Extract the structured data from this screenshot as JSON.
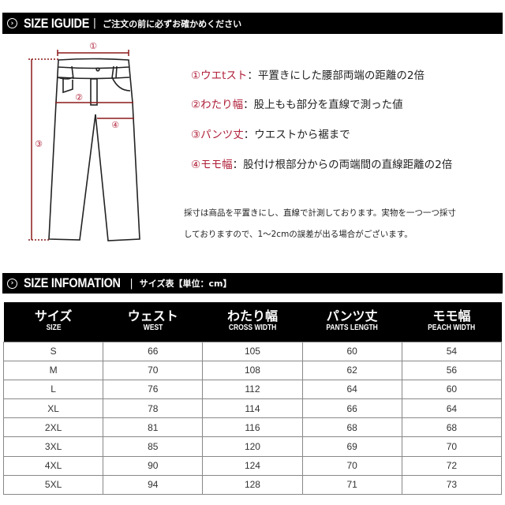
{
  "guide_header": {
    "icon": "chevron-right-circle-icon",
    "title": "SIZE IGUIDE",
    "separator": "|",
    "subtitle": "ご注文の前に必ずお確かめください"
  },
  "diagram": {
    "markers": [
      "①",
      "②",
      "③",
      "④"
    ],
    "accent_color": "#b0213a"
  },
  "specs": [
    {
      "label": "①ウエtスト",
      "text": "：平置きにした腰部両端の距離の2倍"
    },
    {
      "label": "②わたり幅",
      "text": "：股上もも部分を直線で測った値"
    },
    {
      "label": "③パンツ丈",
      "text": "：ウエストから裾まで"
    },
    {
      "label": "④モモ幅",
      "text": "：股付け根部分からの両端間の直線距離の2倍"
    }
  ],
  "note": [
    "採寸は商品を平置きにし、直線で計測しております。実物を一つ一つ採寸",
    "しておりますので、1～2cmの誤差が出る場合がございます。"
  ],
  "info_header": {
    "icon": "chevron-right-circle-icon",
    "title": "SIZE INFOMATION",
    "separator": "|",
    "subtitle": "サイズ表【単位：cm】"
  },
  "table": {
    "columns": [
      {
        "jp": "サイズ",
        "en": "SIZE"
      },
      {
        "jp": "ウェスト",
        "en": "WEST"
      },
      {
        "jp": "わたり幅",
        "en": "CROSS WIDTH"
      },
      {
        "jp": "パンツ丈",
        "en": "PANTS LENGTH"
      },
      {
        "jp": "モモ幅",
        "en": "PEACH WIDTH"
      }
    ],
    "rows": [
      [
        "S",
        "66",
        "105",
        "60",
        "54"
      ],
      [
        "M",
        "70",
        "108",
        "62",
        "56"
      ],
      [
        "L",
        "76",
        "112",
        "64",
        "60"
      ],
      [
        "XL",
        "78",
        "114",
        "66",
        "64"
      ],
      [
        "2XL",
        "81",
        "116",
        "68",
        "68"
      ],
      [
        "3XL",
        "85",
        "120",
        "69",
        "70"
      ],
      [
        "4XL",
        "90",
        "124",
        "70",
        "72"
      ],
      [
        "5XL",
        "94",
        "128",
        "71",
        "73"
      ]
    ]
  }
}
